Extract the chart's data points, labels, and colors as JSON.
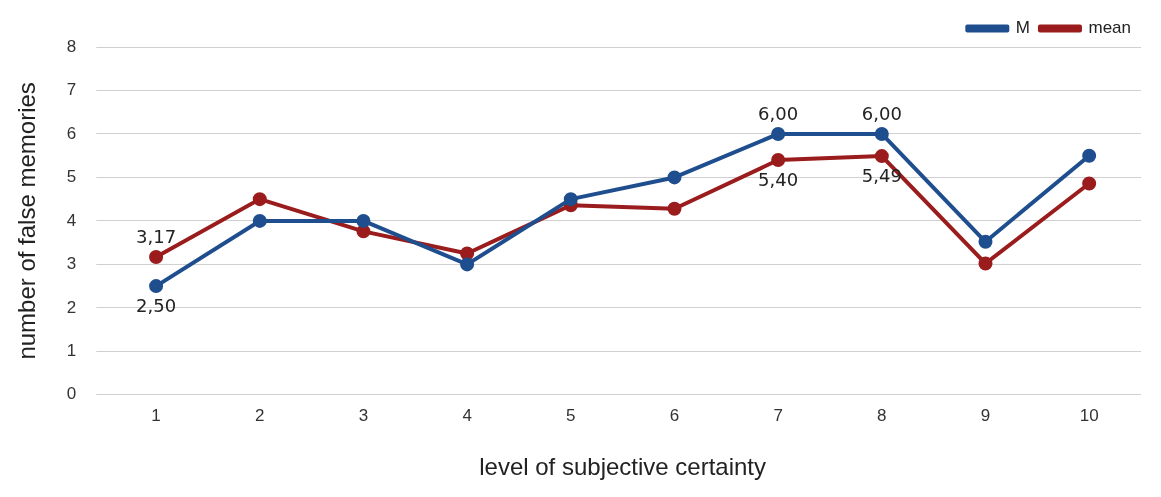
{
  "chart_data": {
    "type": "line",
    "xlabel": "level of subjective certainty",
    "ylabel": "number of false memories",
    "categories": [
      "1",
      "2",
      "3",
      "4",
      "5",
      "6",
      "7",
      "8",
      "9",
      "10"
    ],
    "series": [
      {
        "name": "M",
        "color": "#1f4e8f",
        "values": [
          2.5,
          4.0,
          4.0,
          3.0,
          4.5,
          5.0,
          6.0,
          6.0,
          3.52,
          5.5
        ],
        "value_labels": [
          "2,50",
          null,
          null,
          null,
          null,
          null,
          "6,00",
          "6,00",
          null,
          null
        ]
      },
      {
        "name": "mean",
        "color": "#9b1c1c",
        "values": [
          3.17,
          4.5,
          3.76,
          3.25,
          4.36,
          4.28,
          5.4,
          5.49,
          3.02,
          4.86
        ],
        "value_labels": [
          "3,17",
          null,
          null,
          null,
          null,
          null,
          "5,40",
          "5,49",
          null,
          null
        ]
      }
    ],
    "ylim": [
      0,
      8
    ],
    "yticks": [
      0,
      1,
      2,
      3,
      4,
      5,
      6,
      7,
      8
    ],
    "grid": "y",
    "legend": "top right",
    "marker": "circle",
    "line_style": "solid"
  }
}
